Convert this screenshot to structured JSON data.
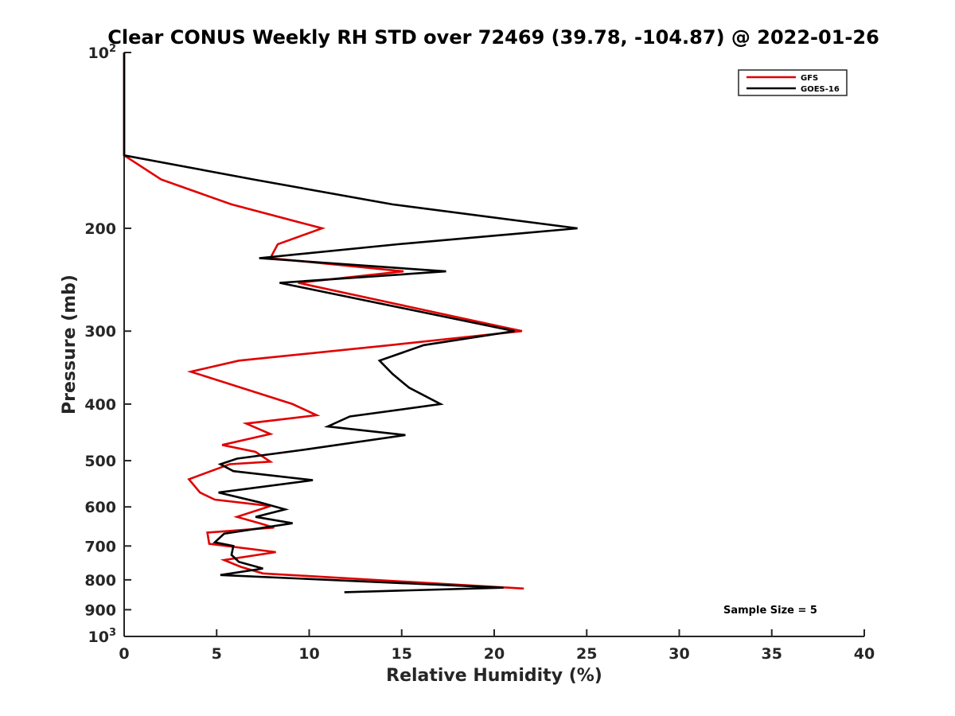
{
  "chart_data": {
    "type": "line",
    "title": "Clear CONUS Weekly RH STD over 72469 (39.78, -104.87) @ 2022-01-26",
    "xlabel": "Relative Humidity (%)",
    "ylabel": "Pressure (mb)",
    "xlim": [
      0,
      40
    ],
    "ylim": [
      100,
      1000
    ],
    "y_scale": "log",
    "y_reversed": true,
    "xticks": [
      0,
      5,
      10,
      15,
      20,
      25,
      30,
      35,
      40
    ],
    "xtick_labels": [
      "0",
      "5",
      "10",
      "15",
      "20",
      "25",
      "30",
      "35",
      "40"
    ],
    "yticks": [
      100,
      200,
      300,
      400,
      500,
      600,
      700,
      800,
      900,
      1000
    ],
    "ytick_labels": [
      {
        "base": "10",
        "exp": "2"
      },
      {
        "base": "200"
      },
      {
        "base": "300"
      },
      {
        "base": "400"
      },
      {
        "base": "500"
      },
      {
        "base": "600"
      },
      {
        "base": "700"
      },
      {
        "base": "800"
      },
      {
        "base": "900"
      },
      {
        "base": "10",
        "exp": "3"
      }
    ],
    "legend_position": "top-right",
    "annotation": "Sample Size = 5",
    "series": [
      {
        "name": "GFS",
        "color": "#e00000",
        "points": [
          [
            0,
            100
          ],
          [
            0,
            150
          ],
          [
            2,
            165
          ],
          [
            5.8,
            182
          ],
          [
            10.7,
            200
          ],
          [
            8.3,
            213
          ],
          [
            7.9,
            225
          ],
          [
            15.1,
            237
          ],
          [
            9.4,
            248
          ],
          [
            21.5,
            300
          ],
          [
            14.4,
            317
          ],
          [
            6.2,
            337
          ],
          [
            3.6,
            352
          ],
          [
            9.1,
            400
          ],
          [
            10.4,
            418
          ],
          [
            6.6,
            432
          ],
          [
            7.9,
            450
          ],
          [
            5.3,
            470
          ],
          [
            7.1,
            483
          ],
          [
            7.9,
            502
          ],
          [
            5.7,
            507
          ],
          [
            3.5,
            538
          ],
          [
            4.1,
            567
          ],
          [
            4.9,
            583
          ],
          [
            7.9,
            598
          ],
          [
            6.1,
            624
          ],
          [
            7.4,
            641
          ],
          [
            8.1,
            651
          ],
          [
            4.5,
            664
          ],
          [
            4.6,
            694
          ],
          [
            8.2,
            717
          ],
          [
            5.4,
            740
          ],
          [
            6.3,
            760
          ],
          [
            7.5,
            780
          ],
          [
            21.6,
            828
          ]
        ]
      },
      {
        "name": "GOES-16",
        "color": "#000000",
        "points": [
          [
            0,
            100
          ],
          [
            0,
            150
          ],
          [
            7,
            165
          ],
          [
            14.5,
            182
          ],
          [
            24.5,
            200
          ],
          [
            14.8,
            213
          ],
          [
            7.3,
            225
          ],
          [
            17.4,
            237
          ],
          [
            8.4,
            248
          ],
          [
            21.1,
            300
          ],
          [
            16.2,
            317
          ],
          [
            13.8,
            337
          ],
          [
            14.5,
            355
          ],
          [
            15.4,
            375
          ],
          [
            17.1,
            400
          ],
          [
            12.2,
            420
          ],
          [
            11,
            437
          ],
          [
            15.2,
            452
          ],
          [
            9.9,
            478
          ],
          [
            6.1,
            496
          ],
          [
            5.2,
            507
          ],
          [
            5.9,
            521
          ],
          [
            10.2,
            540
          ],
          [
            5.1,
            567
          ],
          [
            7.3,
            589
          ],
          [
            8.7,
            606
          ],
          [
            7.1,
            624
          ],
          [
            9.1,
            640
          ],
          [
            5.4,
            667
          ],
          [
            4.9,
            690
          ],
          [
            5.9,
            700
          ],
          [
            5.8,
            725
          ],
          [
            6.2,
            745
          ],
          [
            7.5,
            765
          ],
          [
            5.2,
            785
          ],
          [
            20.5,
            825
          ],
          [
            11.9,
            840
          ]
        ]
      }
    ]
  }
}
